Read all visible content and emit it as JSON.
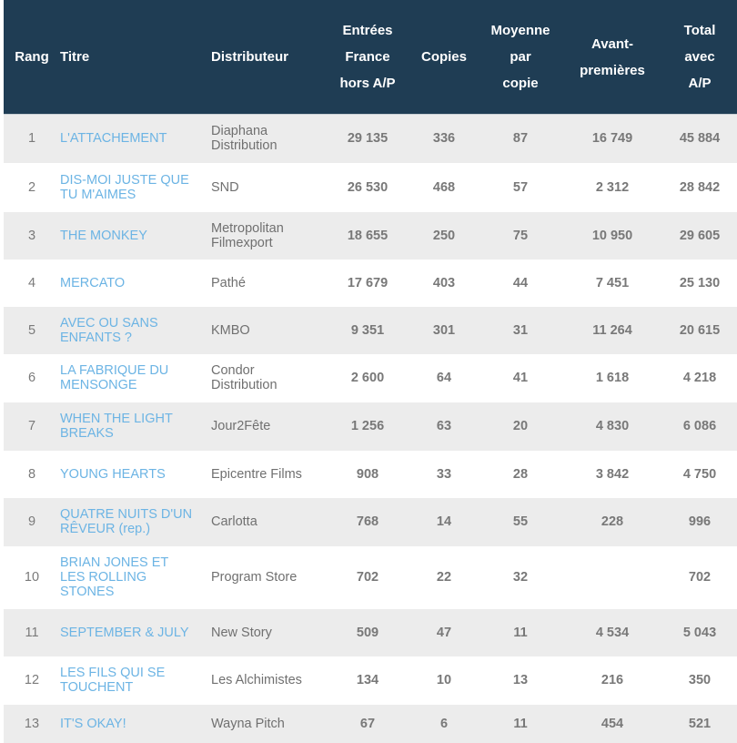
{
  "table": {
    "headers": {
      "rang": [
        "Rang"
      ],
      "titre": [
        "Titre"
      ],
      "distributeur": [
        "Distributeur"
      ],
      "entrees": [
        "Entrées",
        "France",
        "hors A/P"
      ],
      "copies": [
        "Copies"
      ],
      "moyenne": [
        "Moyenne",
        "par",
        "copie"
      ],
      "avant": [
        "Avant-",
        "premières"
      ],
      "total": [
        "Total",
        "avec",
        "A/P"
      ]
    },
    "colors": {
      "header_bg": "#1f3d54",
      "header_text": "#ffffff",
      "row_odd_bg": "#ececec",
      "row_even_bg": "#ffffff",
      "title_link": "#6cb4e4",
      "body_text": "#707070"
    },
    "rows": [
      {
        "rang": "1",
        "titre": [
          "L'ATTACHEMENT"
        ],
        "distributeur": [
          "Diaphana",
          "Distribution"
        ],
        "entrees": "29 135",
        "copies": "336",
        "moyenne": "87",
        "avant": "16 749",
        "total": "45 884"
      },
      {
        "rang": "2",
        "titre": [
          "DIS-MOI JUSTE QUE",
          "TU M'AIMES"
        ],
        "distributeur": [
          "SND"
        ],
        "entrees": "26 530",
        "copies": "468",
        "moyenne": "57",
        "avant": "2 312",
        "total": "28 842"
      },
      {
        "rang": "3",
        "titre": [
          "THE MONKEY"
        ],
        "distributeur": [
          "Metropolitan",
          "Filmexport"
        ],
        "entrees": "18 655",
        "copies": "250",
        "moyenne": "75",
        "avant": "10 950",
        "total": "29 605"
      },
      {
        "rang": "4",
        "titre": [
          "MERCATO"
        ],
        "distributeur": [
          "Pathé"
        ],
        "entrees": "17 679",
        "copies": "403",
        "moyenne": "44",
        "avant": "7 451",
        "total": "25 130"
      },
      {
        "rang": "5",
        "titre": [
          "AVEC OU SANS",
          "ENFANTS ?"
        ],
        "distributeur": [
          "KMBO"
        ],
        "entrees": "9 351",
        "copies": "301",
        "moyenne": "31",
        "avant": "11 264",
        "total": "20 615"
      },
      {
        "rang": "6",
        "titre": [
          "LA FABRIQUE DU",
          "MENSONGE"
        ],
        "distributeur": [
          "Condor",
          "Distribution"
        ],
        "entrees": "2 600",
        "copies": "64",
        "moyenne": "41",
        "avant": "1 618",
        "total": "4 218"
      },
      {
        "rang": "7",
        "titre": [
          "WHEN THE LIGHT",
          "BREAKS"
        ],
        "distributeur": [
          "Jour2Fête"
        ],
        "entrees": "1 256",
        "copies": "63",
        "moyenne": "20",
        "avant": "4 830",
        "total": "6 086"
      },
      {
        "rang": "8",
        "titre": [
          "YOUNG HEARTS"
        ],
        "distributeur": [
          "Epicentre Films"
        ],
        "entrees": "908",
        "copies": "33",
        "moyenne": "28",
        "avant": "3 842",
        "total": "4 750"
      },
      {
        "rang": "9",
        "titre": [
          "QUATRE NUITS D'UN",
          "RÊVEUR (rep.)"
        ],
        "distributeur": [
          "Carlotta"
        ],
        "entrees": "768",
        "copies": "14",
        "moyenne": "55",
        "avant": "228",
        "total": "996"
      },
      {
        "rang": "10",
        "titre": [
          "BRIAN JONES ET",
          "LES ROLLING",
          "STONES"
        ],
        "distributeur": [
          "Program Store"
        ],
        "entrees": "702",
        "copies": "22",
        "moyenne": "32",
        "avant": "",
        "total": "702"
      },
      {
        "rang": "11",
        "titre": [
          "SEPTEMBER & JULY"
        ],
        "distributeur": [
          "New Story"
        ],
        "entrees": "509",
        "copies": "47",
        "moyenne": "11",
        "avant": "4 534",
        "total": "5 043"
      },
      {
        "rang": "12",
        "titre": [
          "LES FILS QUI SE",
          "TOUCHENT"
        ],
        "distributeur": [
          "Les Alchimistes"
        ],
        "entrees": "134",
        "copies": "10",
        "moyenne": "13",
        "avant": "216",
        "total": "350"
      },
      {
        "rang": "13",
        "titre": [
          "IT'S OKAY!"
        ],
        "distributeur": [
          "Wayna Pitch"
        ],
        "entrees": "67",
        "copies": "6",
        "moyenne": "11",
        "avant": "454",
        "total": "521"
      }
    ]
  }
}
